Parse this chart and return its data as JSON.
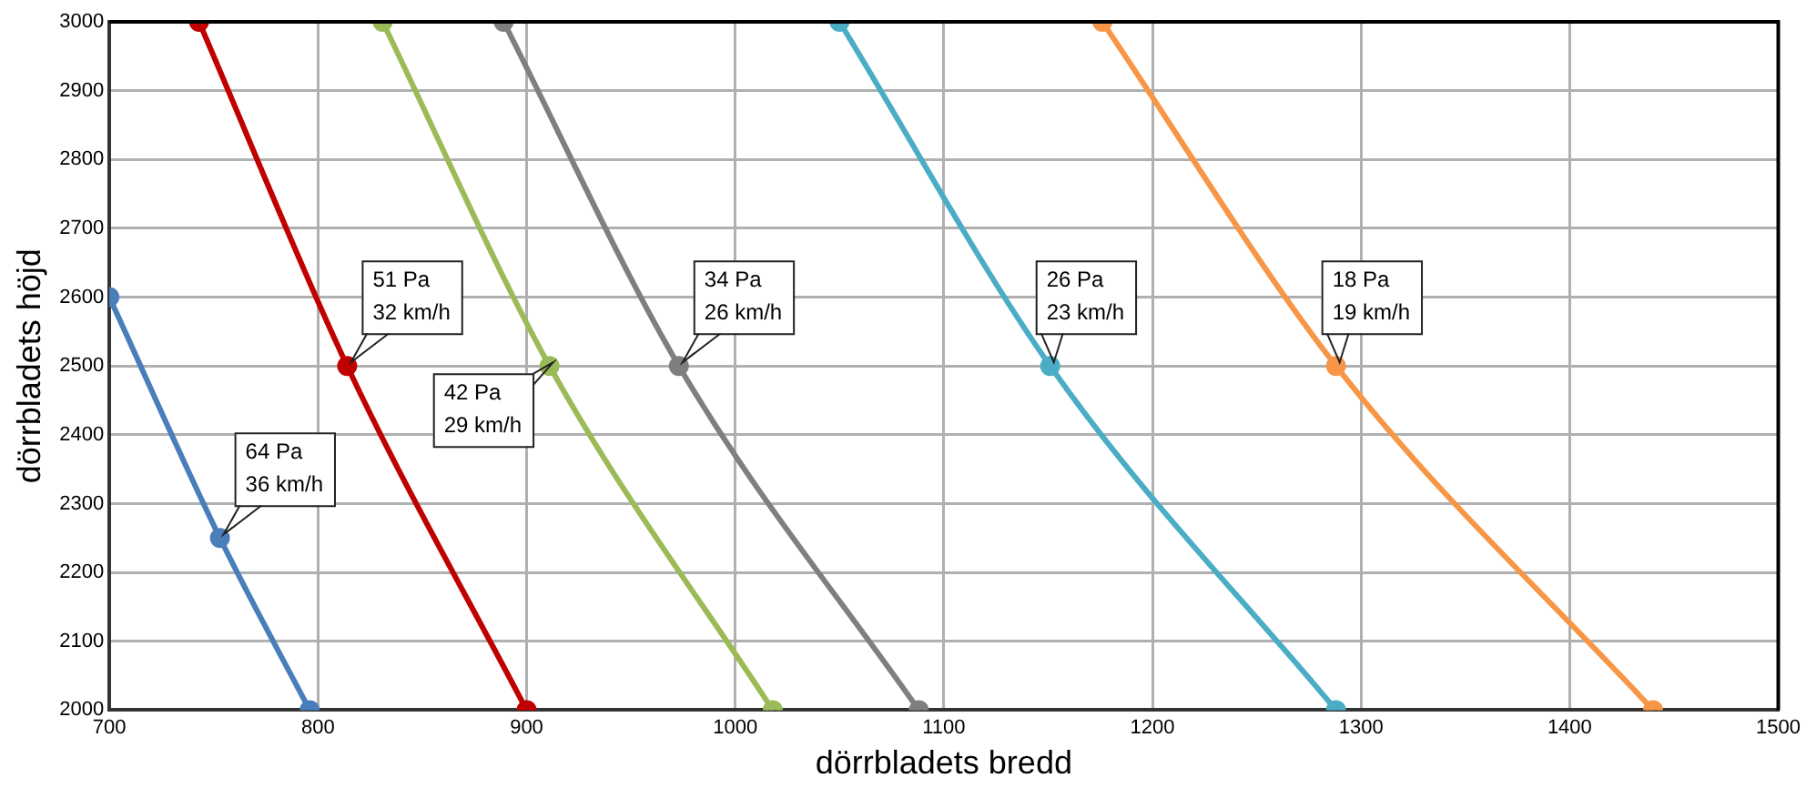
{
  "chart_data": {
    "type": "line",
    "xlabel": "dörrbladets bredd",
    "ylabel": "dörrbladets höjd",
    "xlim": [
      700,
      1500
    ],
    "xticks": [
      700,
      800,
      900,
      1000,
      1100,
      1200,
      1300,
      1400,
      1500
    ],
    "ylim": [
      2000,
      3000
    ],
    "yticks": [
      2000,
      2100,
      2200,
      2300,
      2400,
      2500,
      2600,
      2700,
      2800,
      2900,
      3000
    ],
    "grid": true,
    "legend": false,
    "marker": "circle",
    "line_style": "solid",
    "series": [
      {
        "color": "#4a7ebb",
        "x": [
          700,
          753,
          796
        ],
        "values": [
          2600,
          2250,
          2000
        ]
      },
      {
        "color": "#c00000",
        "x": [
          743,
          814,
          900
        ],
        "values": [
          3000,
          2500,
          2000
        ]
      },
      {
        "color": "#9bbb59",
        "x": [
          831,
          911,
          1018
        ],
        "values": [
          3000,
          2500,
          2000
        ]
      },
      {
        "color": "#7f7f7f",
        "x": [
          889,
          973,
          1088
        ],
        "values": [
          3000,
          2500,
          2000
        ]
      },
      {
        "color": "#4bacc6",
        "x": [
          1050,
          1151,
          1288
        ],
        "values": [
          3000,
          2500,
          2000
        ]
      },
      {
        "color": "#f79646",
        "x": [
          1176,
          1288,
          1440
        ],
        "values": [
          3000,
          2500,
          2000
        ]
      }
    ],
    "annotations": [
      {
        "text": "64 Pa\n36 km/h",
        "x": 753,
        "y": 2250
      },
      {
        "text": "51 Pa\n32 km/h",
        "x": 814,
        "y": 2500
      },
      {
        "text": "42 Pa\n29 km/h",
        "x": 911,
        "y": 2500
      },
      {
        "text": "34 Pa\n26 km/h",
        "x": 973,
        "y": 2500
      },
      {
        "text": "26 Pa\n23 km/h",
        "x": 1151,
        "y": 2500
      },
      {
        "text": "18 Pa\n19 km/h",
        "x": 1288,
        "y": 2500
      }
    ]
  }
}
